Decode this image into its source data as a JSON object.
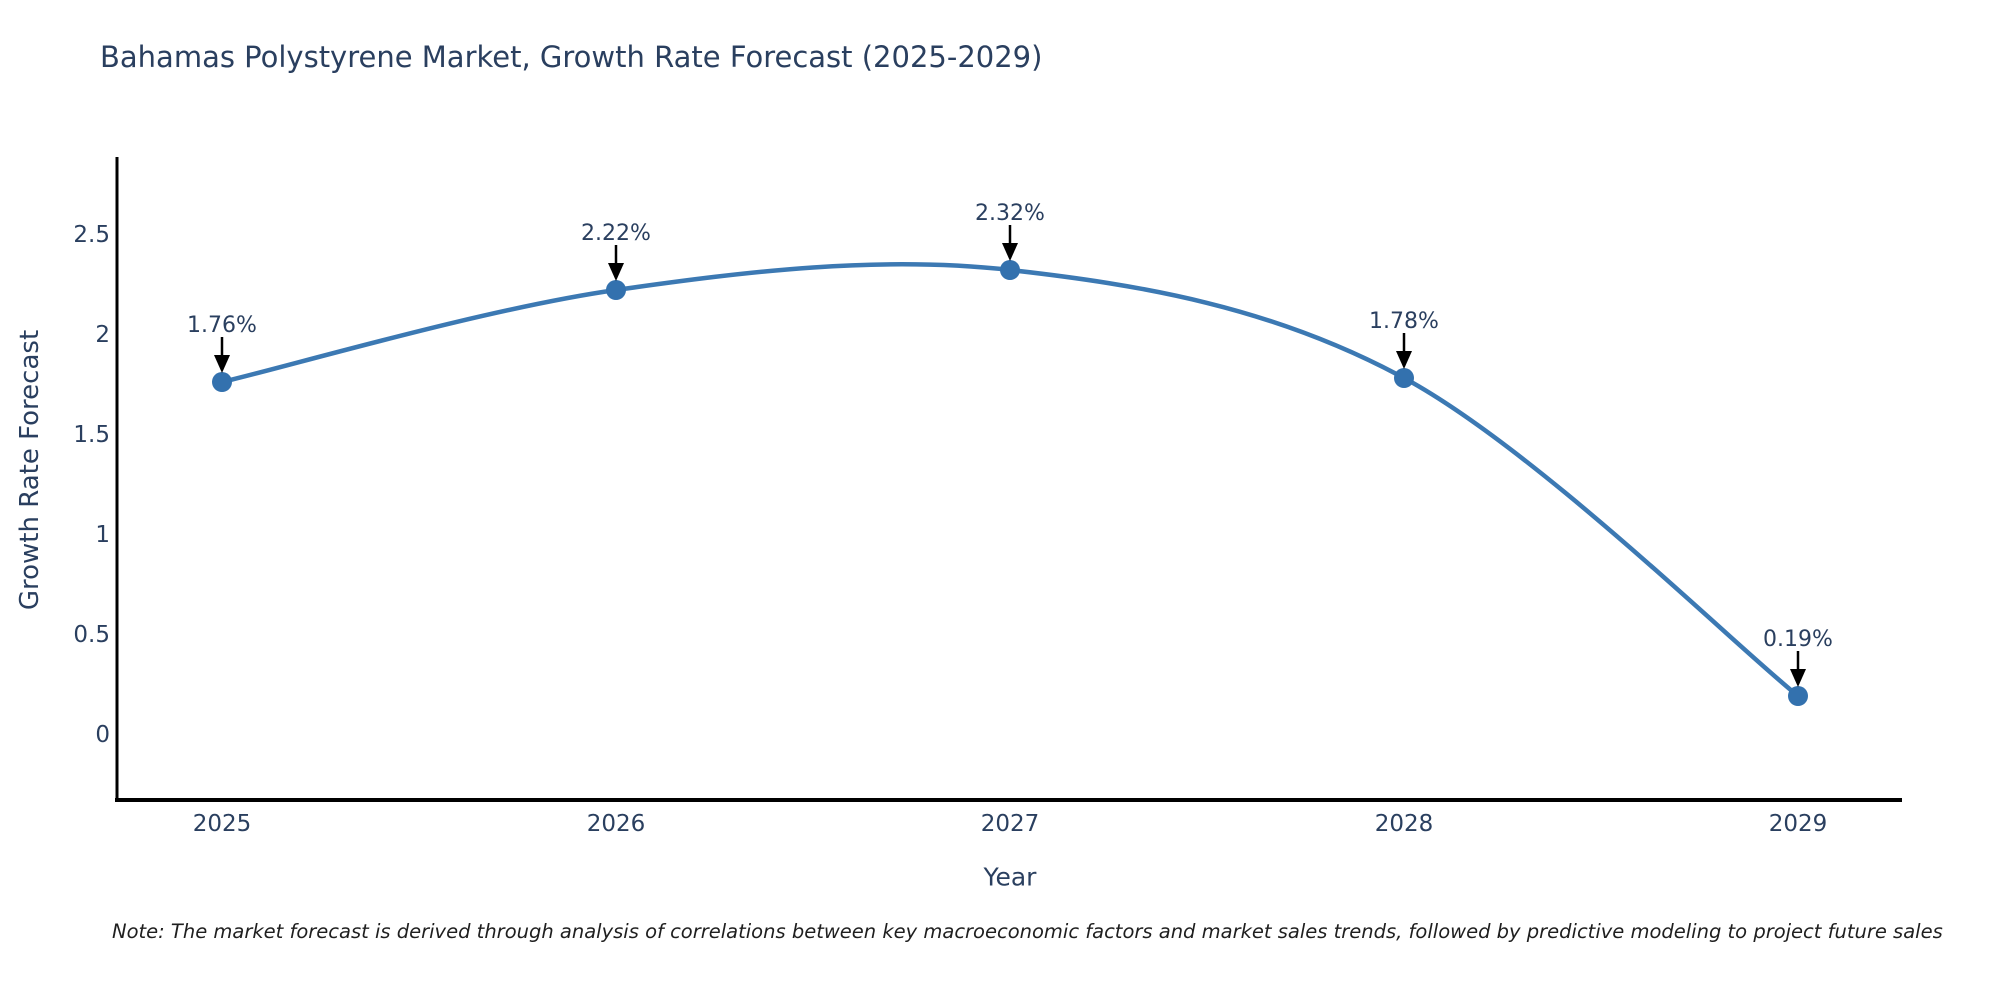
{
  "chart_data": {
    "type": "line",
    "title": "Bahamas Polystyrene Market, Growth Rate Forecast (2025-2029)",
    "x": [
      "2025",
      "2026",
      "2027",
      "2028",
      "2029"
    ],
    "y": [
      1.76,
      2.22,
      2.32,
      1.78,
      0.19
    ],
    "point_labels": [
      "1.76%",
      "2.22%",
      "2.32%",
      "1.78%",
      "0.19%"
    ],
    "xlabel": "Year",
    "ylabel": "Growth Rate Forecast",
    "yticks": [
      0,
      0.5,
      1,
      1.5,
      2,
      2.5
    ],
    "ylim": [
      -0.33,
      2.87
    ],
    "grid": false,
    "legend_position": "none",
    "line_shape": "spline",
    "annotation_style": "label-with-down-arrow",
    "colors": {
      "line": "#3c79b3",
      "marker": "#3371ae",
      "text": "#2a3f5f",
      "axis": "#000000",
      "arrow": "#000000",
      "note": "#1f1f1f",
      "background": "#ffffff"
    },
    "note": "Note: The market forecast is derived through analysis of correlations between key macroeconomic factors and market sales trends, followed by predictive modeling to project future sales"
  }
}
